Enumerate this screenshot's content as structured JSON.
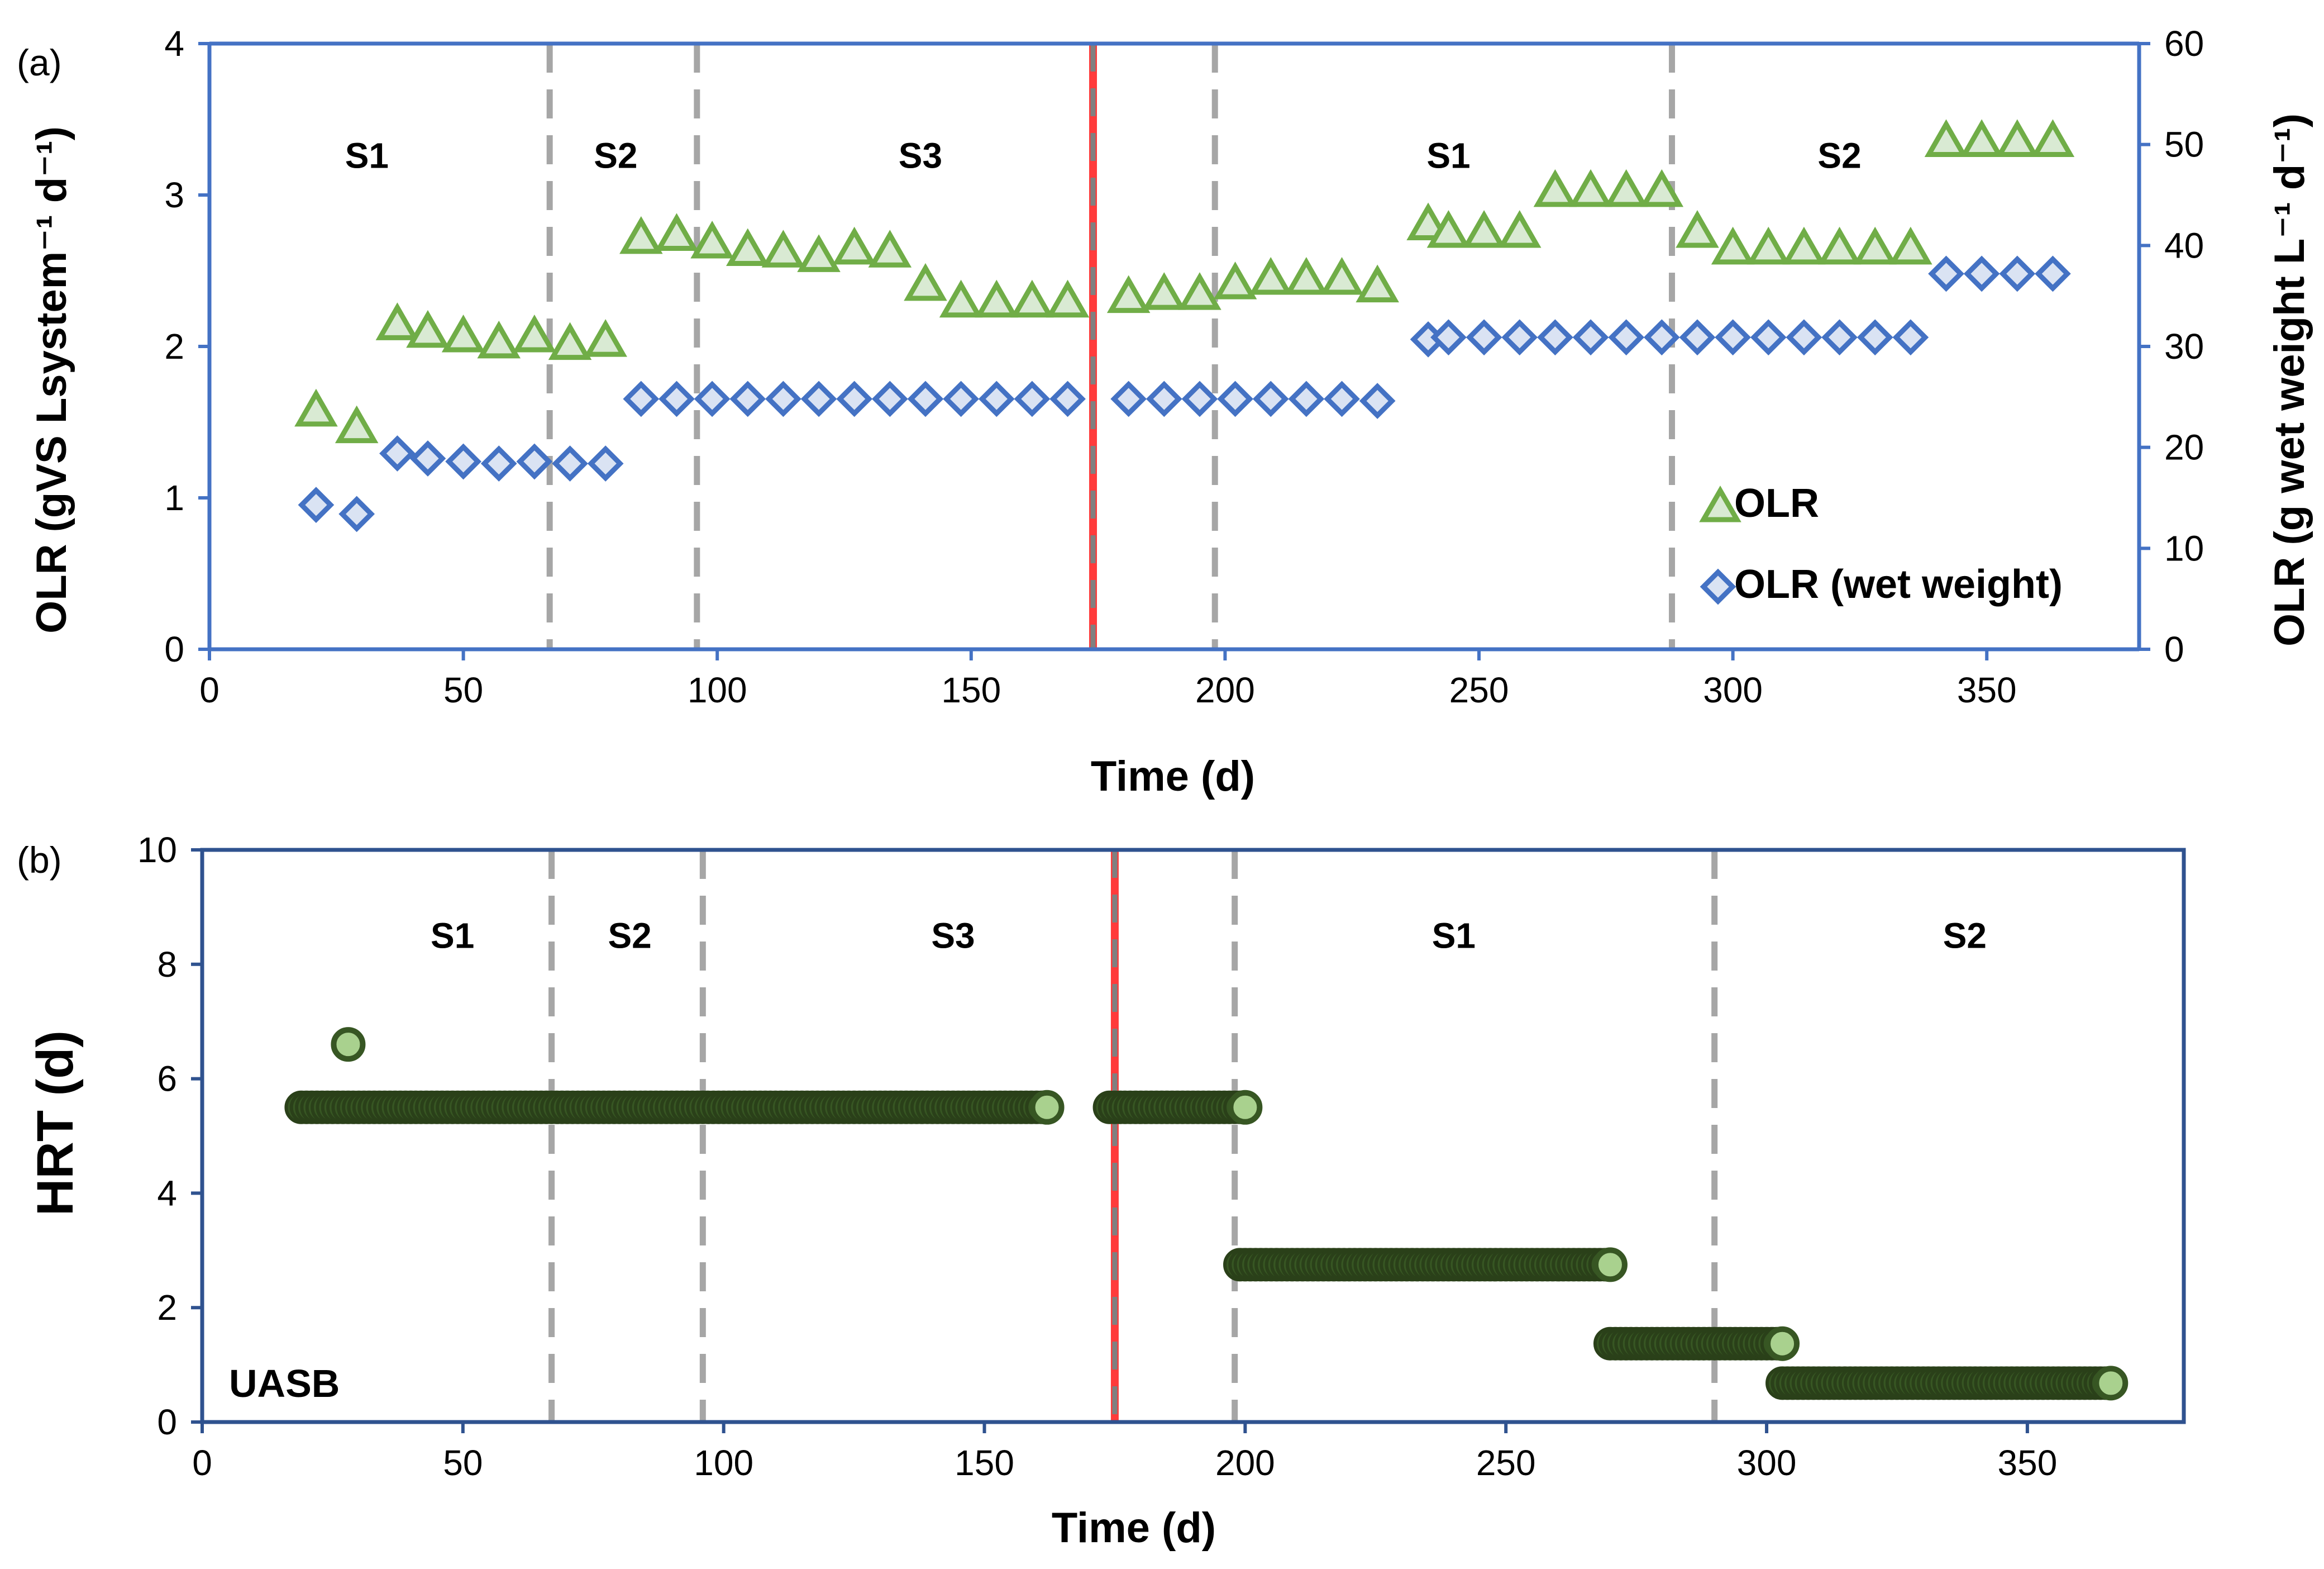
{
  "chart_data": [
    {
      "type": "scatter",
      "panel_label": "(a)",
      "xlabel": "Time (d)",
      "ylabel": "OLR (gVS Lsystem⁻¹ d⁻¹)",
      "y2label": "OLR (g wet weight L⁻¹ d⁻¹)",
      "xlim": [
        0,
        380
      ],
      "ylim": [
        0,
        4
      ],
      "y2lim": [
        0,
        60
      ],
      "x_ticks": [
        0,
        50,
        100,
        150,
        200,
        250,
        300,
        350
      ],
      "y_ticks": [
        0,
        1,
        2,
        3,
        4
      ],
      "y2_ticks": [
        0,
        10,
        20,
        30,
        40,
        50,
        60
      ],
      "stage_dividers": [
        67,
        96,
        198,
        288
      ],
      "red_divider": 174,
      "stage_labels": [
        {
          "text": "S1",
          "x": 31,
          "y": 3.26
        },
        {
          "text": "S2",
          "x": 80,
          "y": 3.26
        },
        {
          "text": "S3",
          "x": 140,
          "y": 3.26
        },
        {
          "text": "S1",
          "x": 244,
          "y": 3.26
        },
        {
          "text": "S2",
          "x": 321,
          "y": 3.26
        }
      ],
      "legend": {
        "position": "bottom-right",
        "entries": [
          "OLR",
          "OLR (wet weight)"
        ]
      },
      "series": [
        {
          "name": "OLR",
          "axis": "left",
          "marker": "triangle",
          "color": "#70ad47",
          "fill": "#d9ead3",
          "x": [
            21,
            29,
            37,
            43,
            50,
            57,
            64,
            71,
            78,
            85,
            92,
            99,
            106,
            113,
            120,
            127,
            134,
            141,
            148,
            155,
            162,
            169,
            181,
            188,
            195,
            202,
            209,
            216,
            223,
            230,
            240,
            244,
            251,
            258,
            265,
            272,
            279,
            286,
            293,
            300,
            307,
            314,
            321,
            328,
            335,
            342,
            349,
            356,
            363
          ],
          "y": [
            1.58,
            1.47,
            2.15,
            2.1,
            2.07,
            2.03,
            2.07,
            2.02,
            2.04,
            2.72,
            2.74,
            2.69,
            2.64,
            2.63,
            2.6,
            2.65,
            2.63,
            2.41,
            2.3,
            2.3,
            2.3,
            2.3,
            2.33,
            2.35,
            2.35,
            2.42,
            2.45,
            2.45,
            2.45,
            2.4,
            2.81,
            2.76,
            2.76,
            2.76,
            3.03,
            3.03,
            3.03,
            3.03,
            2.76,
            2.65,
            2.65,
            2.65,
            2.65,
            2.65,
            2.65,
            3.36,
            3.36,
            3.36,
            3.36
          ]
        },
        {
          "name": "OLR (wet weight)",
          "axis": "right",
          "marker": "diamond",
          "color": "#4472c4",
          "fill": "#dae3f3",
          "x": [
            21,
            29,
            37,
            43,
            50,
            57,
            64,
            71,
            78,
            85,
            92,
            99,
            106,
            113,
            120,
            127,
            134,
            141,
            148,
            155,
            162,
            169,
            181,
            188,
            195,
            202,
            209,
            216,
            223,
            230,
            240,
            244,
            251,
            258,
            265,
            272,
            279,
            286,
            293,
            300,
            307,
            314,
            321,
            328,
            335,
            342,
            349,
            356,
            363
          ],
          "y": [
            14.3,
            13.4,
            19.4,
            18.9,
            18.6,
            18.4,
            18.6,
            18.4,
            18.4,
            24.8,
            24.8,
            24.8,
            24.8,
            24.8,
            24.8,
            24.8,
            24.8,
            24.8,
            24.8,
            24.8,
            24.8,
            24.8,
            24.8,
            24.8,
            24.8,
            24.8,
            24.8,
            24.8,
            24.8,
            24.6,
            30.7,
            30.9,
            30.9,
            30.9,
            30.9,
            30.9,
            30.9,
            30.9,
            30.9,
            30.9,
            30.9,
            30.9,
            30.9,
            30.9,
            30.9,
            37.2,
            37.2,
            37.2,
            37.2
          ]
        }
      ]
    },
    {
      "type": "scatter",
      "panel_label": "(b)",
      "xlabel": "Time (d)",
      "ylabel": "HRT (d)",
      "xlim": [
        0,
        380
      ],
      "ylim": [
        0,
        10
      ],
      "x_ticks": [
        0,
        50,
        100,
        150,
        200,
        250,
        300,
        350
      ],
      "y_ticks": [
        0,
        2,
        4,
        6,
        8,
        10
      ],
      "stage_dividers": [
        67,
        96,
        198,
        290
      ],
      "red_divider": 175,
      "stage_labels": [
        {
          "text": "S1",
          "x": 48,
          "y": 8.5
        },
        {
          "text": "S2",
          "x": 82,
          "y": 8.5
        },
        {
          "text": "S3",
          "x": 144,
          "y": 8.5
        },
        {
          "text": "S1",
          "x": 240,
          "y": 8.5
        },
        {
          "text": "S2",
          "x": 338,
          "y": 8.5
        }
      ],
      "corner_label": "UASB",
      "series": [
        {
          "name": "HRT",
          "marker": "circle",
          "color": "#375623",
          "fill": "#a9d18e",
          "segments": [
            {
              "x_start": 19,
              "x_end": 162,
              "y": 5.5
            },
            {
              "x_start": 174,
              "x_end": 200,
              "y": 5.5
            },
            {
              "x_start": 199,
              "x_end": 270,
              "y": 2.75
            },
            {
              "x_start": 270,
              "x_end": 303,
              "y": 1.37
            },
            {
              "x_start": 303,
              "x_end": 366,
              "y": 0.68
            }
          ],
          "x": [
            28,
            162,
            200,
            270,
            303,
            366
          ],
          "y": [
            6.6,
            5.5,
            5.5,
            2.75,
            1.37,
            0.68
          ]
        }
      ]
    }
  ]
}
